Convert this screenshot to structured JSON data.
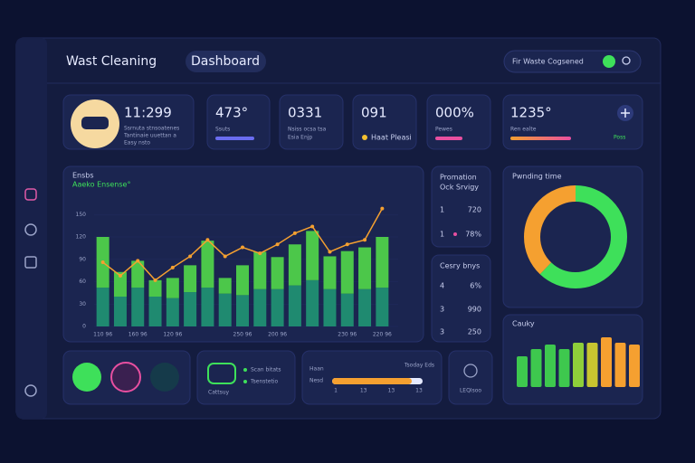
{
  "header": {
    "title": "Wast Cleaning",
    "tab": "Dashboard",
    "search": "Fir Waste Cogsened"
  },
  "stat_cards": [
    {
      "value": "11:299",
      "lines": [
        "Ssrnuta stnsoatenes",
        "Tantinaie uuettan a",
        "Easy nsto"
      ]
    },
    {
      "value": "473°",
      "caption": "Ssuts"
    },
    {
      "value": "0331",
      "caption": "Nsiss ocsa tsa",
      "sub": "Esia Enjp"
    },
    {
      "value": "091",
      "caption": "Haat Pleasi"
    },
    {
      "value": "000%",
      "caption": "Pewes"
    },
    {
      "value": "1235°",
      "caption": "Ren ealte",
      "badge": "Poss"
    }
  ],
  "main_chart": {
    "type": "bar",
    "title": "Ensbs",
    "subtitle": "Aaeko Ensense°",
    "categories": [
      "110 96",
      null,
      "160 96",
      null,
      "120 96",
      null,
      null,
      null,
      "250 96",
      null,
      "200 96",
      null,
      null,
      null,
      "230 96",
      null,
      "220 96"
    ],
    "series": [
      {
        "color": "#1f8a70",
        "values": [
          52,
          40,
          52,
          40,
          38,
          46,
          52,
          44,
          42,
          50,
          50,
          55,
          62,
          50,
          44,
          50,
          52
        ]
      },
      {
        "color": "#4cc74a",
        "values": [
          68,
          33,
          36,
          22,
          27,
          36,
          63,
          21,
          40,
          50,
          43,
          55,
          66,
          44,
          57,
          56,
          68
        ]
      },
      {
        "type": "line",
        "color": "#f5a030",
        "values": [
          86,
          68,
          88,
          62,
          79,
          94,
          116,
          94,
          106,
          98,
          110,
          125,
          134,
          100,
          110,
          116,
          158
        ]
      }
    ],
    "ylim": [
      0,
      160
    ],
    "yticks": [
      0,
      30,
      60,
      90,
      120,
      150
    ]
  },
  "promotion": {
    "title": "Promation",
    "subtitle": "Ock Srvigy",
    "rows": [
      [
        "1",
        "720"
      ],
      [
        "1",
        "78%"
      ]
    ]
  },
  "category": {
    "title": "Cesry bnys",
    "rows": [
      [
        "4",
        "6%"
      ],
      [
        "3",
        "990"
      ],
      [
        "3",
        "250"
      ]
    ]
  },
  "donut": {
    "type": "pie",
    "title": "Pwnding time",
    "values": [
      62,
      38
    ],
    "colors": [
      "#3ee05a",
      "#f5a030"
    ]
  },
  "cauky": {
    "type": "bar",
    "title": "Cauky",
    "values": [
      34,
      42,
      47,
      42,
      49,
      49,
      55,
      49,
      47
    ],
    "colors": [
      "#3ec84e",
      "#3ec84e",
      "#3ec84e",
      "#3ec84e",
      "#8fcf3a",
      "#c8c530",
      "#f5a030",
      "#f5a030",
      "#f5a030"
    ]
  },
  "bottom": {
    "legend": [
      "Scan bitats",
      "Tsenstetio"
    ],
    "car_label": "Cattsuy",
    "progress": {
      "title": "Haan",
      "label": "Tsoday Eds",
      "side": "Nesd",
      "value": 88,
      "xlim": [
        0,
        100
      ],
      "ticks": [
        "1",
        "13",
        "13",
        "13"
      ]
    },
    "icon_label": "LEQIsoo"
  }
}
